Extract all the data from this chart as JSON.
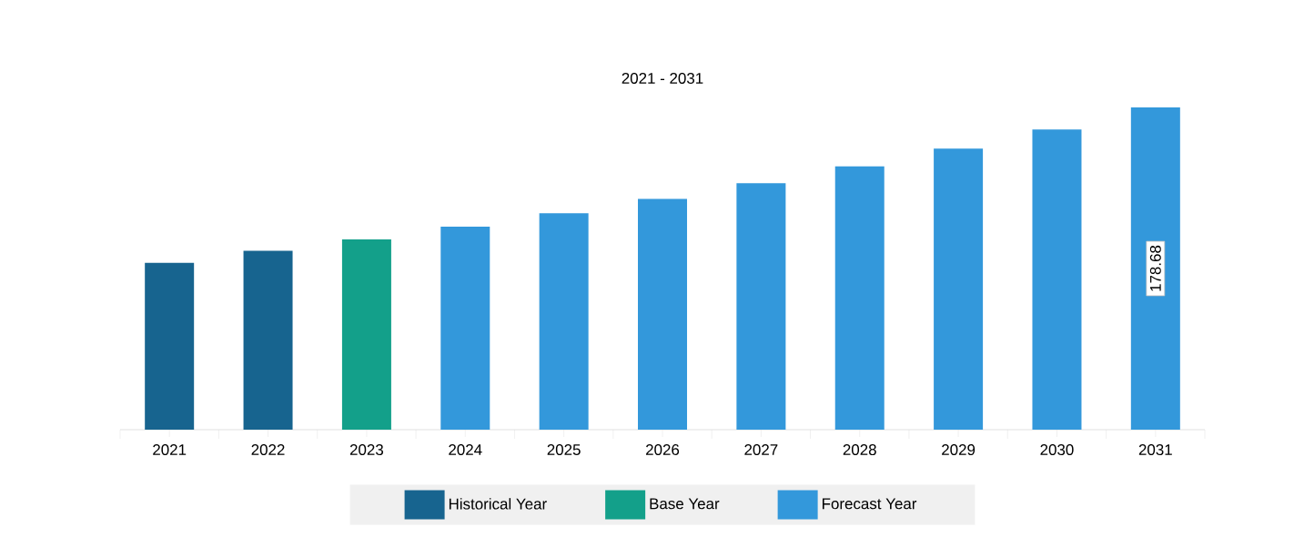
{
  "chart_data": {
    "type": "bar",
    "title": "2021 - 2031",
    "categories": [
      "2021",
      "2022",
      "2023",
      "2024",
      "2025",
      "2026",
      "2027",
      "2028",
      "2029",
      "2030",
      "2031"
    ],
    "series": [
      {
        "name": "Historical Year",
        "color": "#17648f",
        "values": [
          92.5,
          99.2,
          null,
          null,
          null,
          null,
          null,
          null,
          null,
          null,
          null
        ]
      },
      {
        "name": "Base Year",
        "color": "#13a08a",
        "values": [
          null,
          null,
          105.5,
          null,
          null,
          null,
          null,
          null,
          null,
          null,
          null
        ]
      },
      {
        "name": "Forecast Year",
        "color": "#3398db",
        "values": [
          null,
          null,
          null,
          112.6,
          120.0,
          127.9,
          136.6,
          146.0,
          155.8,
          166.5,
          178.68
        ],
        "value_labels": [
          null,
          null,
          null,
          null,
          null,
          null,
          null,
          null,
          null,
          null,
          "178.68"
        ]
      }
    ],
    "ylim": [
      0,
      178.68
    ],
    "legend": "bottom"
  }
}
